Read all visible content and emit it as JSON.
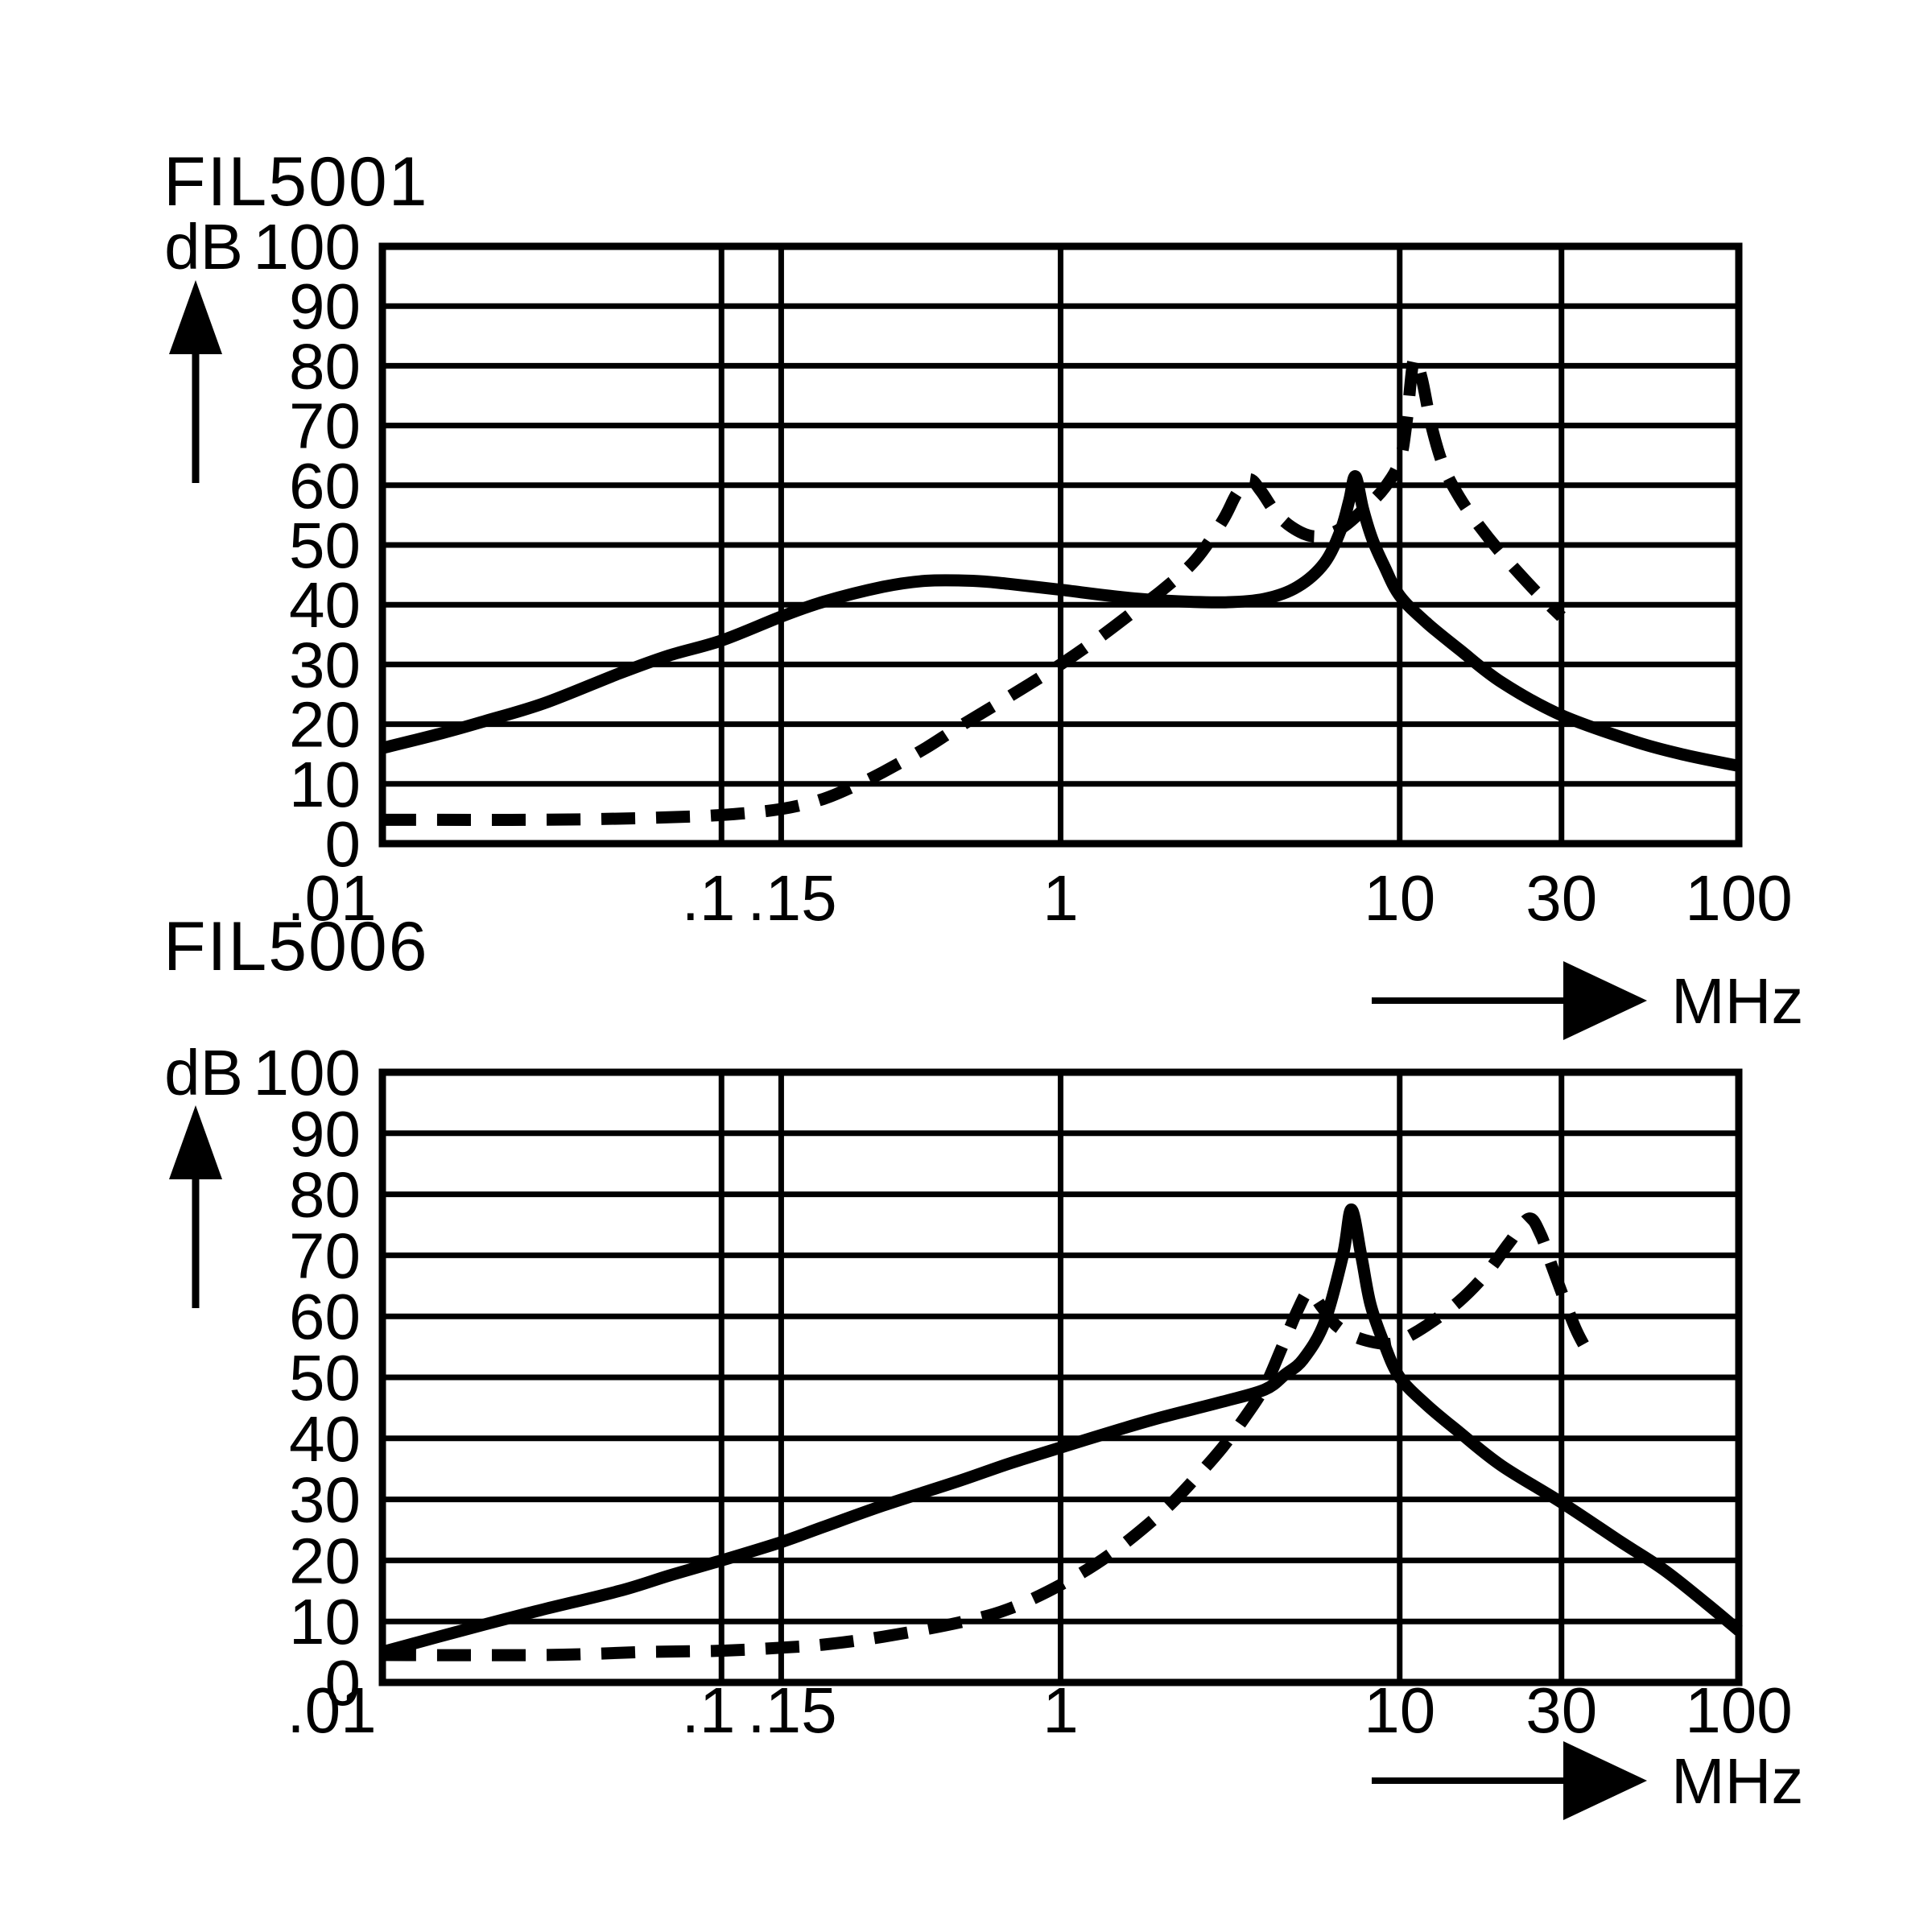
{
  "page": {
    "background_color": "#ffffff",
    "ink_color": "#000000",
    "description": "Two stacked insertion-loss line charts"
  },
  "chart_data": [
    {
      "type": "line",
      "title": "FIL5001",
      "x_axis": {
        "label": "MHz",
        "scale": "log",
        "min": 0.01,
        "max": 100,
        "ticks": [
          {
            "label": ".01",
            "value": 0.01
          },
          {
            "label": ".1",
            "value": 0.1
          },
          {
            "label": ".15",
            "value": 0.15
          },
          {
            "label": "1",
            "value": 1
          },
          {
            "label": "10",
            "value": 10
          },
          {
            "label": "30",
            "value": 30
          },
          {
            "label": "100",
            "value": 100
          }
        ],
        "gridlines": [
          0.1,
          0.15,
          1,
          10,
          30
        ]
      },
      "y_axis": {
        "label": "dB",
        "min": 0,
        "max": 100,
        "tick_step": 10,
        "ticks": [
          100,
          90,
          80,
          70,
          60,
          50,
          40,
          30,
          20,
          10,
          0
        ]
      },
      "grid": true,
      "legend": "none",
      "series": [
        {
          "name": "solid-curve",
          "style": "solid",
          "points": [
            [
              0.01,
              16
            ],
            [
              0.015,
              18.5
            ],
            [
              0.02,
              20.5
            ],
            [
              0.03,
              23.5
            ],
            [
              0.05,
              28.5
            ],
            [
              0.07,
              31.5
            ],
            [
              0.1,
              34
            ],
            [
              0.15,
              38
            ],
            [
              0.2,
              40.5
            ],
            [
              0.3,
              43
            ],
            [
              0.4,
              44
            ],
            [
              0.55,
              44
            ],
            [
              0.7,
              43.5
            ],
            [
              1,
              42.5
            ],
            [
              1.5,
              41.3
            ],
            [
              2,
              40.7
            ],
            [
              3,
              40.4
            ],
            [
              4,
              41
            ],
            [
              5,
              43
            ],
            [
              6,
              47
            ],
            [
              6.7,
              52.5
            ],
            [
              7.1,
              57.5
            ],
            [
              7.4,
              61.5
            ],
            [
              7.8,
              56
            ],
            [
              8.3,
              51
            ],
            [
              9,
              46.5
            ],
            [
              10,
              41.5
            ],
            [
              12,
              37
            ],
            [
              15,
              32.5
            ],
            [
              20,
              27
            ],
            [
              30,
              21.5
            ],
            [
              50,
              17
            ],
            [
              70,
              14.8
            ],
            [
              100,
              13
            ]
          ]
        },
        {
          "name": "dashed-curve",
          "style": "dashed",
          "points": [
            [
              0.01,
              4
            ],
            [
              0.03,
              4
            ],
            [
              0.06,
              4.3
            ],
            [
              0.1,
              4.8
            ],
            [
              0.15,
              5.8
            ],
            [
              0.2,
              7.5
            ],
            [
              0.25,
              9.8
            ],
            [
              0.3,
              12
            ],
            [
              0.4,
              16
            ],
            [
              0.5,
              19.5
            ],
            [
              0.7,
              24.5
            ],
            [
              1,
              30
            ],
            [
              1.3,
              34.5
            ],
            [
              1.7,
              39.5
            ],
            [
              2,
              42.5
            ],
            [
              2.5,
              47.5
            ],
            [
              3,
              54
            ],
            [
              3.3,
              58.5
            ],
            [
              3.6,
              61
            ],
            [
              3.9,
              59
            ],
            [
              4.3,
              55.5
            ],
            [
              4.8,
              53
            ],
            [
              5.5,
              51.5
            ],
            [
              6.3,
              52
            ],
            [
              7,
              53.5
            ],
            [
              8,
              56.5
            ],
            [
              9,
              59.5
            ],
            [
              10,
              64
            ],
            [
              10.5,
              71
            ],
            [
              11,
              81
            ],
            [
              11.6,
              78
            ],
            [
              12.4,
              70
            ],
            [
              13.5,
              63
            ],
            [
              15,
              58
            ],
            [
              17,
              53.5
            ],
            [
              20,
              48.5
            ],
            [
              24,
              43.5
            ],
            [
              27,
              40.5
            ],
            [
              30,
              38
            ]
          ]
        }
      ]
    },
    {
      "type": "line",
      "title": "FIL5006",
      "x_axis": {
        "label": "MHz",
        "scale": "log",
        "min": 0.01,
        "max": 100,
        "ticks": [
          {
            "label": ".01",
            "value": 0.01
          },
          {
            "label": ".1",
            "value": 0.1
          },
          {
            "label": ".15",
            "value": 0.15
          },
          {
            "label": "1",
            "value": 1
          },
          {
            "label": "10",
            "value": 10
          },
          {
            "label": "30",
            "value": 30
          },
          {
            "label": "100",
            "value": 100
          }
        ],
        "gridlines": [
          0.1,
          0.15,
          1,
          10,
          30
        ]
      },
      "y_axis": {
        "label": "dB",
        "min": 0,
        "max": 100,
        "tick_step": 10,
        "ticks": [
          100,
          90,
          80,
          70,
          60,
          50,
          40,
          30,
          20,
          10,
          0
        ]
      },
      "grid": true,
      "legend": "none",
      "series": [
        {
          "name": "solid-curve",
          "style": "solid",
          "points": [
            [
              0.01,
              5
            ],
            [
              0.02,
              9.5
            ],
            [
              0.03,
              12
            ],
            [
              0.05,
              15
            ],
            [
              0.07,
              17.5
            ],
            [
              0.1,
              20
            ],
            [
              0.15,
              23
            ],
            [
              0.2,
              25.5
            ],
            [
              0.3,
              29
            ],
            [
              0.5,
              33
            ],
            [
              0.7,
              35.8
            ],
            [
              1,
              38.5
            ],
            [
              1.5,
              41.5
            ],
            [
              2,
              43.5
            ],
            [
              3,
              46
            ],
            [
              4,
              48
            ],
            [
              4.6,
              50.5
            ],
            [
              5.2,
              53
            ],
            [
              6,
              59
            ],
            [
              6.8,
              70
            ],
            [
              7.2,
              77.5
            ],
            [
              7.7,
              70
            ],
            [
              8.2,
              62
            ],
            [
              9,
              55.5
            ],
            [
              10,
              50
            ],
            [
              12,
              45.5
            ],
            [
              15,
              41
            ],
            [
              20,
              35.5
            ],
            [
              30,
              29.5
            ],
            [
              45,
              23
            ],
            [
              60,
              18.5
            ],
            [
              80,
              13
            ],
            [
              100,
              8.5
            ]
          ]
        },
        {
          "name": "dashed-curve",
          "style": "dashed",
          "points": [
            [
              0.01,
              4.5
            ],
            [
              0.03,
              4.5
            ],
            [
              0.06,
              5
            ],
            [
              0.1,
              5.2
            ],
            [
              0.15,
              5.7
            ],
            [
              0.2,
              6.2
            ],
            [
              0.3,
              7.5
            ],
            [
              0.5,
              9.8
            ],
            [
              0.7,
              12
            ],
            [
              1,
              16
            ],
            [
              1.4,
              21
            ],
            [
              2,
              28
            ],
            [
              2.5,
              33.5
            ],
            [
              3,
              38.5
            ],
            [
              3.5,
              43.5
            ],
            [
              4,
              48.5
            ],
            [
              4.5,
              55
            ],
            [
              5,
              61
            ],
            [
              5.4,
              64
            ],
            [
              5.9,
              61.5
            ],
            [
              6.5,
              58.5
            ],
            [
              7.5,
              56.5
            ],
            [
              9,
              55.5
            ],
            [
              10,
              56
            ],
            [
              12,
              58.5
            ],
            [
              15,
              62.5
            ],
            [
              18,
              67
            ],
            [
              21,
              72
            ],
            [
              24,
              76
            ],
            [
              26,
              73.5
            ],
            [
              28,
              68.5
            ],
            [
              30,
              64
            ],
            [
              33,
              58
            ],
            [
              36,
              54
            ]
          ]
        }
      ]
    }
  ]
}
